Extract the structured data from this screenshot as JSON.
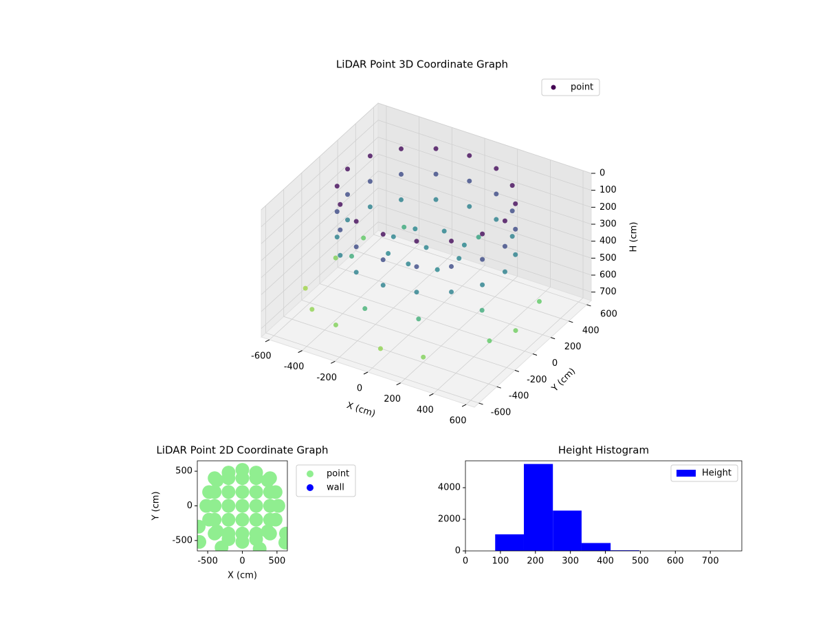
{
  "chart_data": [
    {
      "type": "scatter3d",
      "title": "LiDAR Point 3D Coordinate Graph",
      "xlabel": "X (cm)",
      "ylabel": "Y (cm)",
      "zlabel": "H (cm)",
      "xlim": [
        -650,
        650
      ],
      "ylim": [
        -650,
        650
      ],
      "zlim": [
        0,
        750
      ],
      "z_inverted": true,
      "xticks": [
        -600,
        -400,
        -200,
        0,
        200,
        400,
        600
      ],
      "yticks": [
        -600,
        -400,
        -200,
        0,
        200,
        400,
        600
      ],
      "zticks": [
        0,
        100,
        200,
        300,
        400,
        500,
        600,
        700
      ],
      "grid": true,
      "legend": "upper right",
      "series": [
        {
          "name": "point",
          "colormap": "viridis",
          "x": [
            480,
            443,
            339,
            184,
            0,
            -184,
            -339,
            -443,
            -480,
            -443,
            -339,
            -184,
            0,
            184,
            339,
            443,
            480,
            443,
            339,
            184,
            0,
            -184,
            -339,
            -443,
            -480,
            -443,
            -339,
            -184,
            0,
            184,
            339,
            443,
            480,
            443,
            339,
            184,
            0,
            -184,
            -339,
            -443,
            -480,
            -443,
            -339,
            -184,
            0,
            184,
            339,
            443,
            0,
            200,
            -200,
            0,
            0,
            150,
            -150,
            150,
            -150,
            -520,
            -580,
            -600,
            -450,
            -250,
            50,
            300,
            550,
            600,
            580,
            -300,
            -100,
            200,
            450,
            -400,
            100
          ],
          "y": [
            0,
            184,
            339,
            443,
            480,
            443,
            339,
            184,
            0,
            -184,
            -339,
            -443,
            -480,
            -443,
            -339,
            -184,
            0,
            184,
            339,
            443,
            480,
            443,
            339,
            184,
            0,
            -184,
            -339,
            -443,
            -480,
            -443,
            -339,
            -184,
            0,
            184,
            339,
            443,
            480,
            443,
            339,
            184,
            0,
            -184,
            -339,
            -443,
            -480,
            -443,
            -339,
            -184,
            0,
            0,
            0,
            200,
            -200,
            150,
            -150,
            -150,
            150,
            250,
            50,
            -250,
            -450,
            -550,
            -600,
            -580,
            -300,
            -100,
            200,
            300,
            -500,
            -450,
            -200,
            -100,
            400
          ],
          "h": [
            20,
            20,
            20,
            20,
            20,
            20,
            20,
            20,
            20,
            20,
            20,
            20,
            20,
            20,
            20,
            20,
            170,
            170,
            170,
            170,
            170,
            170,
            170,
            170,
            170,
            170,
            170,
            170,
            170,
            170,
            170,
            170,
            320,
            320,
            320,
            320,
            320,
            320,
            320,
            320,
            320,
            320,
            320,
            320,
            320,
            320,
            320,
            320,
            330,
            330,
            330,
            330,
            330,
            340,
            340,
            340,
            340,
            560,
            600,
            640,
            620,
            600,
            620,
            600,
            560,
            580,
            560,
            450,
            480,
            470,
            460,
            460,
            430
          ]
        }
      ]
    },
    {
      "type": "scatter",
      "title": "LiDAR Point 2D Coordinate Graph",
      "xlabel": "X (cm)",
      "ylabel": "Y (cm)",
      "xlim": [
        -650,
        650
      ],
      "ylim": [
        -650,
        650
      ],
      "xticks": [
        -500,
        0,
        500
      ],
      "yticks": [
        -500,
        0,
        500
      ],
      "legend": "outside right",
      "series": [
        {
          "name": "point",
          "color": "#90ee90",
          "x": [
            -400,
            -200,
            0,
            200,
            400,
            -400,
            -200,
            0,
            200,
            400,
            -400,
            -200,
            0,
            200,
            400,
            -400,
            -200,
            0,
            200,
            400,
            -400,
            -200,
            0,
            200,
            400,
            520,
            480,
            368,
            199,
            0,
            -199,
            -368,
            -480,
            -520,
            -480,
            -368,
            -199,
            0,
            199,
            368,
            480,
            -630,
            -620,
            630,
            620,
            -300,
            250
          ],
          "y": [
            -400,
            -400,
            -400,
            -400,
            -400,
            -200,
            -200,
            -200,
            -200,
            -200,
            0,
            0,
            0,
            0,
            0,
            200,
            200,
            200,
            200,
            200,
            400,
            400,
            400,
            400,
            400,
            0,
            199,
            368,
            480,
            520,
            480,
            368,
            199,
            0,
            -199,
            -368,
            -480,
            -520,
            -480,
            -368,
            -199,
            -300,
            -520,
            -400,
            -530,
            -600,
            -620
          ]
        },
        {
          "name": "wall",
          "color": "#0000ff",
          "x": [],
          "y": []
        }
      ]
    },
    {
      "type": "histogram",
      "title": "Height Histogram",
      "xlim": [
        0,
        790
      ],
      "ylim": [
        0,
        5700
      ],
      "xticks": [
        0,
        100,
        200,
        300,
        400,
        500,
        600,
        700
      ],
      "yticks": [
        0,
        2000,
        4000
      ],
      "legend": "upper right",
      "bins": [
        2,
        85,
        167,
        250,
        332,
        415,
        497,
        580,
        662,
        745
      ],
      "series": [
        {
          "name": "Height",
          "color": "#0000ff",
          "values": [
            0,
            1050,
            5500,
            2550,
            500,
            40,
            5,
            3,
            2
          ]
        }
      ]
    }
  ]
}
